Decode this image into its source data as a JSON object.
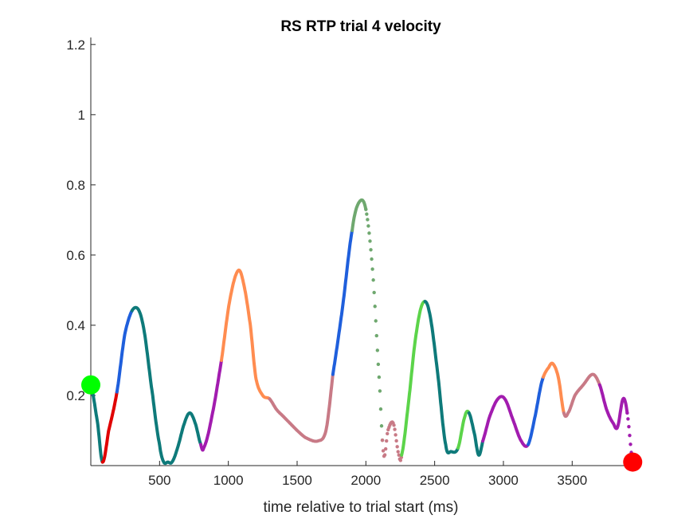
{
  "chart_data": {
    "type": "line",
    "title": "RS  RTP trial 4 velocity",
    "xlabel": "time relative to trial start (ms)",
    "ylabel": "",
    "xlim": [
      0,
      3950
    ],
    "ylim": [
      0,
      1.22
    ],
    "x_ticks": [
      500,
      1000,
      1500,
      2000,
      2500,
      3000,
      3500
    ],
    "y_ticks": [
      0.2,
      0.4,
      0.6,
      0.8,
      1,
      1.2
    ],
    "x_tick_labels": [
      "500",
      "1000",
      "1500",
      "2000",
      "2500",
      "3000",
      "3500"
    ],
    "y_tick_labels": [
      "0.2",
      "0.4",
      "0.6",
      "0.8",
      "1",
      "1.2"
    ],
    "grid": false,
    "legend": "none",
    "anchor_points": [
      [
        0,
        0.23
      ],
      [
        50,
        0.12
      ],
      [
        85,
        0.01
      ],
      [
        130,
        0.1
      ],
      [
        190,
        0.21
      ],
      [
        250,
        0.38
      ],
      [
        320,
        0.45
      ],
      [
        380,
        0.4
      ],
      [
        450,
        0.2
      ],
      [
        500,
        0.06
      ],
      [
        530,
        0.01
      ],
      [
        560,
        0.01
      ],
      [
        590,
        0.01
      ],
      [
        630,
        0.05
      ],
      [
        680,
        0.12
      ],
      [
        720,
        0.15
      ],
      [
        760,
        0.12
      ],
      [
        800,
        0.06
      ],
      [
        820,
        0.05
      ],
      [
        880,
        0.14
      ],
      [
        950,
        0.3
      ],
      [
        1010,
        0.47
      ],
      [
        1070,
        0.555
      ],
      [
        1110,
        0.52
      ],
      [
        1160,
        0.4
      ],
      [
        1200,
        0.25
      ],
      [
        1250,
        0.2
      ],
      [
        1300,
        0.19
      ],
      [
        1350,
        0.16
      ],
      [
        1400,
        0.14
      ],
      [
        1450,
        0.12
      ],
      [
        1500,
        0.1
      ],
      [
        1560,
        0.08
      ],
      [
        1650,
        0.07
      ],
      [
        1710,
        0.1
      ],
      [
        1760,
        0.26
      ],
      [
        1830,
        0.45
      ],
      [
        1900,
        0.67
      ],
      [
        1950,
        0.75
      ],
      [
        2000,
        0.73
      ],
      [
        2050,
        0.55
      ],
      [
        2100,
        0.23
      ],
      [
        2130,
        0.03
      ],
      [
        2160,
        0.1
      ],
      [
        2200,
        0.12
      ],
      [
        2240,
        0.03
      ],
      [
        2260,
        0.03
      ],
      [
        2310,
        0.18
      ],
      [
        2360,
        0.36
      ],
      [
        2410,
        0.46
      ],
      [
        2460,
        0.44
      ],
      [
        2520,
        0.27
      ],
      [
        2580,
        0.06
      ],
      [
        2620,
        0.04
      ],
      [
        2670,
        0.05
      ],
      [
        2720,
        0.14
      ],
      [
        2750,
        0.15
      ],
      [
        2790,
        0.09
      ],
      [
        2820,
        0.03
      ],
      [
        2850,
        0.07
      ],
      [
        2900,
        0.14
      ],
      [
        2960,
        0.19
      ],
      [
        3010,
        0.19
      ],
      [
        3070,
        0.13
      ],
      [
        3130,
        0.07
      ],
      [
        3180,
        0.06
      ],
      [
        3230,
        0.14
      ],
      [
        3280,
        0.24
      ],
      [
        3330,
        0.28
      ],
      [
        3360,
        0.29
      ],
      [
        3400,
        0.25
      ],
      [
        3440,
        0.15
      ],
      [
        3470,
        0.15
      ],
      [
        3520,
        0.2
      ],
      [
        3580,
        0.23
      ],
      [
        3650,
        0.26
      ],
      [
        3700,
        0.23
      ],
      [
        3750,
        0.16
      ],
      [
        3800,
        0.12
      ],
      [
        3830,
        0.11
      ],
      [
        3870,
        0.19
      ],
      [
        3900,
        0.15
      ],
      [
        3940,
        0.01
      ]
    ],
    "segments": [
      {
        "start": 0,
        "end": 85,
        "color": "#0e7a7a",
        "style": "solid"
      },
      {
        "start": 85,
        "end": 190,
        "color": "#e00000",
        "style": "solid"
      },
      {
        "start": 190,
        "end": 300,
        "color": "#1f5fdc",
        "style": "solid"
      },
      {
        "start": 300,
        "end": 800,
        "color": "#0e7a7a",
        "style": "solid"
      },
      {
        "start": 800,
        "end": 950,
        "color": "#a21caf",
        "style": "solid"
      },
      {
        "start": 950,
        "end": 1300,
        "color": "#ff8c50",
        "style": "solid"
      },
      {
        "start": 1300,
        "end": 1760,
        "color": "#c87a86",
        "style": "solid"
      },
      {
        "start": 1760,
        "end": 1900,
        "color": "#1f5fdc",
        "style": "solid"
      },
      {
        "start": 1900,
        "end": 2000,
        "color": "#6fa86f",
        "style": "solid"
      },
      {
        "start": 2000,
        "end": 2120,
        "color": "#6fa86f",
        "style": "dotted"
      },
      {
        "start": 2120,
        "end": 2260,
        "color": "#c87a86",
        "style": "dotted"
      },
      {
        "start": 2260,
        "end": 2430,
        "color": "#5cd44a",
        "style": "solid"
      },
      {
        "start": 2430,
        "end": 2670,
        "color": "#0e7a7a",
        "style": "solid"
      },
      {
        "start": 2670,
        "end": 2750,
        "color": "#5cd44a",
        "style": "solid"
      },
      {
        "start": 2750,
        "end": 2850,
        "color": "#0e7a7a",
        "style": "solid"
      },
      {
        "start": 2850,
        "end": 3180,
        "color": "#a21caf",
        "style": "solid"
      },
      {
        "start": 3180,
        "end": 3290,
        "color": "#1f5fdc",
        "style": "solid"
      },
      {
        "start": 3290,
        "end": 3440,
        "color": "#ff8c50",
        "style": "solid"
      },
      {
        "start": 3440,
        "end": 3700,
        "color": "#c87a86",
        "style": "solid"
      },
      {
        "start": 3700,
        "end": 3900,
        "color": "#a21caf",
        "style": "solid"
      },
      {
        "start": 3900,
        "end": 3940,
        "color": "#a21caf",
        "style": "dotted"
      }
    ],
    "markers": [
      {
        "label": "start",
        "x": 0,
        "y": 0.23,
        "color": "#00ff00"
      },
      {
        "label": "end",
        "x": 3940,
        "y": 0.01,
        "color": "#ff0000"
      }
    ]
  }
}
